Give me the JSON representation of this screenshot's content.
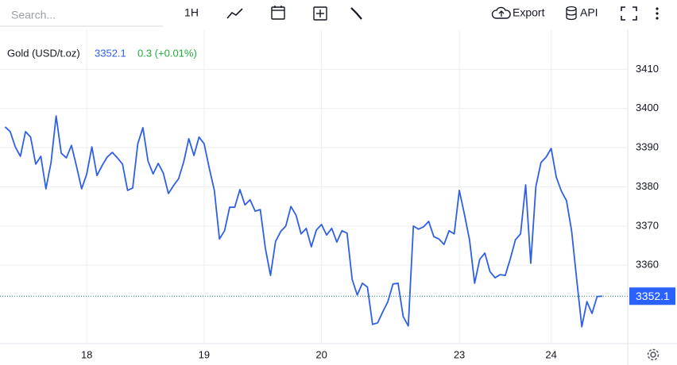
{
  "toolbar": {
    "search_placeholder": "Search...",
    "interval": "1H",
    "export": "Export",
    "api": "API"
  },
  "chart_data": {
    "type": "line",
    "change": "0.3 (+0.01%)",
    "x": [
      0,
      1,
      2,
      3,
      4,
      5,
      6,
      7,
      8,
      9,
      10,
      11,
      12,
      13,
      14,
      15,
      16,
      17,
      18,
      19,
      20,
      21,
      22,
      23,
      24,
      25,
      26,
      27,
      28,
      29,
      30,
      31,
      32,
      33,
      34,
      35,
      36,
      37,
      38,
      39,
      40,
      41,
      42,
      43,
      44,
      45,
      46,
      47,
      48,
      49,
      50,
      51,
      52,
      53,
      54,
      55,
      56,
      57,
      58,
      59,
      60,
      61,
      62,
      63,
      64,
      65,
      66,
      67,
      68,
      69,
      70,
      71,
      72,
      73,
      74,
      75,
      76,
      77,
      78,
      79,
      80,
      81,
      82,
      83,
      84,
      85,
      86,
      87,
      88,
      89,
      90,
      91,
      92,
      93,
      94,
      95,
      96,
      97,
      98,
      99,
      100,
      101,
      102,
      103,
      104,
      105,
      106,
      107,
      108,
      109,
      110,
      111,
      112,
      113,
      114,
      115,
      116,
      117
    ],
    "series": [
      {
        "name": "Gold (USD/t.oz)",
        "color": "#2f5fe6",
        "values": [
          3395.3,
          3394.1,
          3390.2,
          3387.8,
          3394.1,
          3392.7,
          3385.8,
          3387.8,
          3379.5,
          3386.2,
          3398.1,
          3388.6,
          3387.4,
          3390.6,
          3385.2,
          3379.5,
          3383.3,
          3390.2,
          3382.9,
          3385.4,
          3387.6,
          3388.8,
          3387.4,
          3385.8,
          3379.1,
          3379.7,
          3391.0,
          3395.1,
          3386.6,
          3383.3,
          3386.0,
          3383.5,
          3378.3,
          3380.3,
          3382.1,
          3386.4,
          3392.3,
          3388.0,
          3392.7,
          3391.0,
          3384.8,
          3379.1,
          3366.7,
          3368.8,
          3374.8,
          3374.8,
          3379.3,
          3375.4,
          3376.7,
          3373.8,
          3374.2,
          3364.3,
          3357.4,
          3366.1,
          3368.6,
          3370.0,
          3375.0,
          3372.8,
          3368.0,
          3369.4,
          3364.7,
          3369.0,
          3370.4,
          3367.7,
          3369.4,
          3365.9,
          3368.8,
          3368.2,
          3356.4,
          3352.4,
          3355.4,
          3354.4,
          3344.9,
          3345.3,
          3348.1,
          3350.7,
          3355.2,
          3355.4,
          3346.9,
          3344.5,
          3370.0,
          3369.2,
          3369.8,
          3371.2,
          3367.3,
          3366.7,
          3365.3,
          3368.8,
          3368.0,
          3379.1,
          3373.0,
          3366.5,
          3355.4,
          3361.5,
          3363.1,
          3358.4,
          3356.8,
          3357.6,
          3357.4,
          3361.7,
          3366.5,
          3368.0,
          3380.5,
          3360.5,
          3380.1,
          3386.2,
          3387.6,
          3389.8,
          3382.5,
          3378.9,
          3376.5,
          3368.8,
          3356.4,
          3344.3,
          3350.7,
          3347.7,
          3352.0,
          3352.1
        ]
      }
    ],
    "xlim": [
      -1,
      122
    ],
    "xticks": [
      {
        "value": 16,
        "label": "18"
      },
      {
        "value": 39,
        "label": "19"
      },
      {
        "value": 62,
        "label": "20"
      },
      {
        "value": 89,
        "label": "23"
      },
      {
        "value": 107,
        "label": "24"
      }
    ],
    "ylim": [
      3340,
      3420
    ],
    "yticks": [
      3360,
      3370,
      3380,
      3390,
      3400,
      3410
    ],
    "grid": true,
    "last_value_color": "#2962ff"
  }
}
